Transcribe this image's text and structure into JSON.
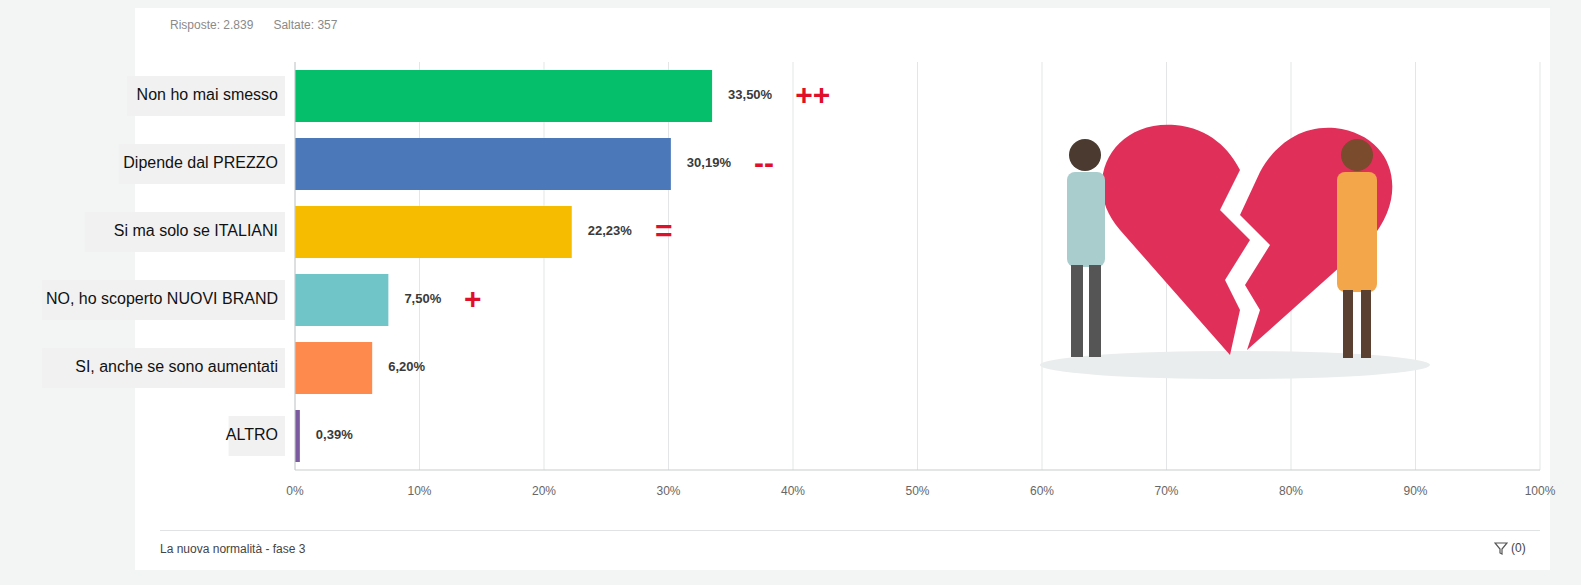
{
  "chart_data": {
    "type": "bar",
    "orientation": "horizontal",
    "categories": [
      "Non ho mai smesso",
      "Dipende dal PREZZO",
      "Si ma solo se ITALIANI",
      "NO, ho scoperto NUOVI BRAND",
      "SI, anche se sono aumentati",
      "ALTRO"
    ],
    "values": [
      33.5,
      30.19,
      22.23,
      7.5,
      6.2,
      0.39
    ],
    "value_labels": [
      "33,50%",
      "30,19%",
      "22,23%",
      "7,50%",
      "6,20%",
      "0,39%"
    ],
    "colors": [
      "#05bf6b",
      "#4b78b8",
      "#f6bc00",
      "#6fc5c8",
      "#ff8a4e",
      "#7b5aa0"
    ],
    "annotations": [
      "++",
      "--",
      "=",
      "+",
      null,
      null
    ],
    "xlim": [
      0,
      100
    ],
    "xticks": [
      {
        "value": 0,
        "label": "0%"
      },
      {
        "value": 10,
        "label": "10%"
      },
      {
        "value": 20,
        "label": "20%"
      },
      {
        "value": 30,
        "label": "30%"
      },
      {
        "value": 40,
        "label": "40%"
      },
      {
        "value": 50,
        "label": "50%"
      },
      {
        "value": 60,
        "label": "60%"
      },
      {
        "value": 70,
        "label": "70%"
      },
      {
        "value": 80,
        "label": "80%"
      },
      {
        "value": 90,
        "label": "90%"
      },
      {
        "value": 100,
        "label": "100%"
      }
    ],
    "grid": true,
    "data_labels": true
  },
  "header": [
    "Risposte: 2.839",
    "Saltate: 357"
  ],
  "footer": {
    "title": "La nuova normalità - fase 3",
    "filter": "(0)"
  }
}
